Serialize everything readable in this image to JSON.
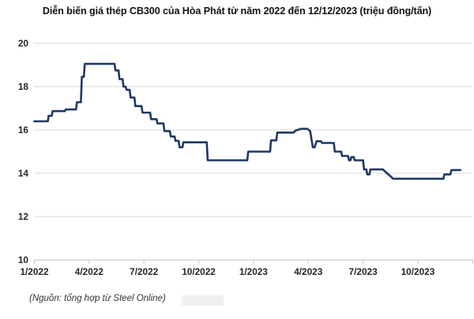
{
  "title": "Diễn biến giá thép CB300 của Hòa Phát từ năm 2022 đến 12/12/2023 (triệu đồng/tấn)",
  "source_note": "(Nguồn: tổng hợp từ Steel Online)",
  "chart_data": {
    "type": "line",
    "line_style": "step",
    "series_name": "Giá thép CB300 Hòa Phát",
    "unit": "triệu đồng/tấn",
    "title": "Diễn biến giá thép CB300 của Hòa Phát từ năm 2022 đến 12/12/2023 (triệu đồng/tấn)",
    "x_axis": "months since 1/2022",
    "x_tick_labels": [
      "1/2022",
      "4/2022",
      "7/2022",
      "10/2022",
      "1/2023",
      "4/2023",
      "7/2023",
      "10/2023"
    ],
    "x_tick_months": [
      0,
      3,
      6,
      9,
      12,
      15,
      18,
      21
    ],
    "num_axis_ticks": 9,
    "xlim": [
      0,
      24
    ],
    "y_ticks": [
      10,
      12,
      14,
      16,
      18,
      20
    ],
    "ylim": [
      10,
      20
    ],
    "grid": true,
    "legend": "none",
    "line_color": "#1f3864",
    "grid_color": "#d9d9d9",
    "axis_color": "#bfbfbf",
    "points": [
      [
        0.0,
        16.4
      ],
      [
        0.74,
        16.4
      ],
      [
        0.78,
        16.65
      ],
      [
        0.95,
        16.65
      ],
      [
        1.0,
        16.87
      ],
      [
        1.67,
        16.87
      ],
      [
        1.72,
        16.95
      ],
      [
        2.28,
        16.95
      ],
      [
        2.33,
        17.28
      ],
      [
        2.55,
        17.28
      ],
      [
        2.6,
        18.45
      ],
      [
        2.71,
        18.45
      ],
      [
        2.76,
        19.05
      ],
      [
        4.39,
        19.05
      ],
      [
        4.44,
        18.75
      ],
      [
        4.61,
        18.75
      ],
      [
        4.66,
        18.35
      ],
      [
        4.83,
        18.35
      ],
      [
        4.88,
        18.0
      ],
      [
        5.0,
        18.0
      ],
      [
        5.05,
        17.85
      ],
      [
        5.22,
        17.85
      ],
      [
        5.27,
        17.5
      ],
      [
        5.48,
        17.5
      ],
      [
        5.53,
        17.1
      ],
      [
        5.87,
        17.1
      ],
      [
        5.92,
        16.8
      ],
      [
        6.34,
        16.8
      ],
      [
        6.39,
        16.5
      ],
      [
        6.69,
        16.5
      ],
      [
        6.74,
        16.3
      ],
      [
        7.07,
        16.3
      ],
      [
        7.12,
        15.95
      ],
      [
        7.42,
        15.95
      ],
      [
        7.47,
        15.7
      ],
      [
        7.68,
        15.7
      ],
      [
        7.73,
        15.5
      ],
      [
        7.9,
        15.5
      ],
      [
        7.95,
        15.2
      ],
      [
        8.11,
        15.2
      ],
      [
        8.16,
        15.43
      ],
      [
        9.44,
        15.43
      ],
      [
        9.49,
        14.6
      ],
      [
        11.66,
        14.6
      ],
      [
        11.71,
        15.0
      ],
      [
        12.91,
        15.0
      ],
      [
        12.96,
        15.52
      ],
      [
        13.25,
        15.52
      ],
      [
        13.3,
        15.88
      ],
      [
        14.2,
        15.88
      ],
      [
        14.3,
        15.97
      ],
      [
        14.6,
        16.05
      ],
      [
        14.95,
        16.05
      ],
      [
        15.1,
        15.95
      ],
      [
        15.25,
        15.2
      ],
      [
        15.35,
        15.2
      ],
      [
        15.45,
        15.48
      ],
      [
        15.7,
        15.48
      ],
      [
        15.75,
        15.4
      ],
      [
        16.4,
        15.4
      ],
      [
        16.45,
        15.0
      ],
      [
        16.8,
        15.0
      ],
      [
        16.85,
        14.8
      ],
      [
        17.18,
        14.8
      ],
      [
        17.23,
        14.6
      ],
      [
        17.31,
        14.6
      ],
      [
        17.36,
        14.75
      ],
      [
        17.49,
        14.75
      ],
      [
        17.54,
        14.6
      ],
      [
        18.0,
        14.6
      ],
      [
        18.05,
        14.18
      ],
      [
        18.18,
        14.18
      ],
      [
        18.23,
        13.95
      ],
      [
        18.35,
        13.95
      ],
      [
        18.4,
        14.18
      ],
      [
        19.08,
        14.18
      ],
      [
        19.65,
        13.75
      ],
      [
        22.4,
        13.75
      ],
      [
        22.45,
        13.95
      ],
      [
        22.78,
        13.95
      ],
      [
        22.83,
        14.15
      ],
      [
        23.33,
        14.15
      ]
    ]
  }
}
